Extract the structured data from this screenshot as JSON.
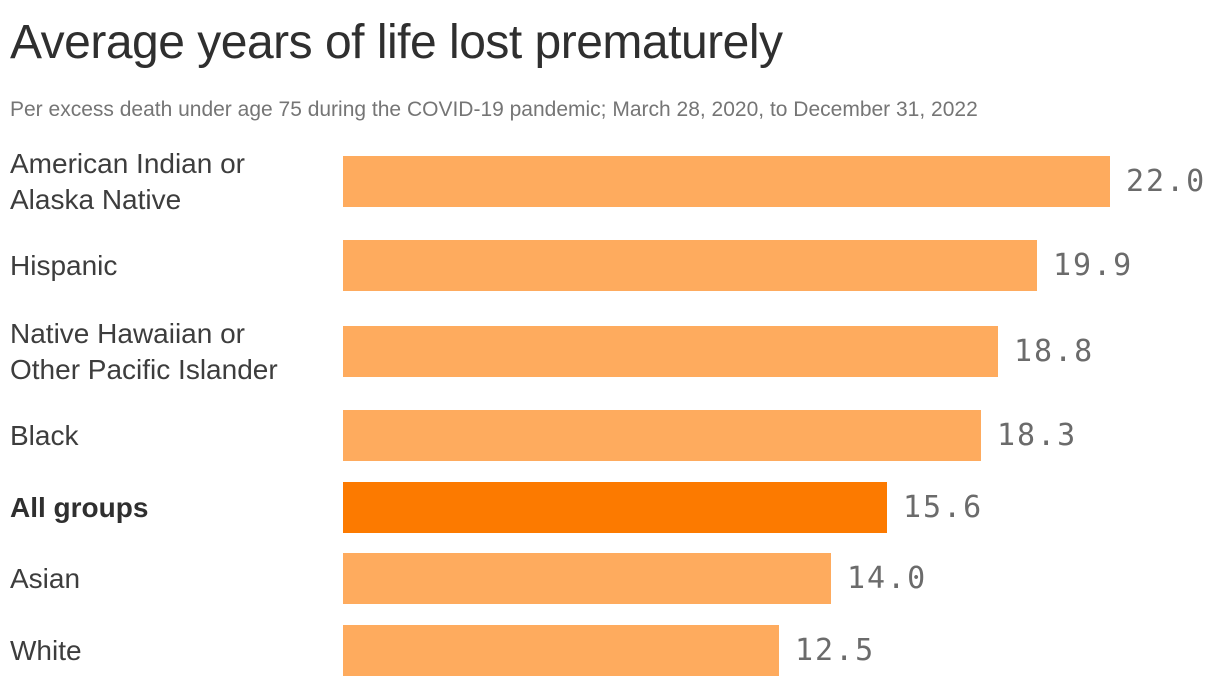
{
  "header": {
    "title": "Average years of life lost prematurely",
    "subtitle": "Per excess death under age 75 during the COVID-19 pandemic; March 28, 2020, to December 31, 2022"
  },
  "chart_data": {
    "type": "bar",
    "orientation": "horizontal",
    "title": "Average years of life lost prematurely",
    "subtitle": "Per excess death under age 75 during the COVID-19 pandemic; March 28, 2020, to December 31, 2022",
    "xlim": [
      0,
      22
    ],
    "grid": false,
    "legend": false,
    "categories": [
      "American Indian or Alaska Native",
      "Hispanic",
      "Native Hawaiian or Other Pacific Islander",
      "Black",
      "All groups",
      "Asian",
      "White"
    ],
    "values": [
      22.0,
      19.9,
      18.8,
      18.3,
      15.6,
      14.0,
      12.5
    ],
    "value_labels": [
      "22.0",
      "19.9",
      "18.8",
      "18.3",
      "15.6",
      "14.0",
      "12.5"
    ],
    "display_label_lines": [
      [
        "American Indian or",
        "Alaska Native"
      ],
      [
        "Hispanic"
      ],
      [
        "Native Hawaiian or",
        "Other Pacific Islander"
      ],
      [
        "Black"
      ],
      [
        "All groups"
      ],
      [
        "Asian"
      ],
      [
        "White"
      ]
    ],
    "highlight_index": 4,
    "colors": {
      "bar": "#feab5e",
      "highlight_bar": "#fc7a00",
      "category_label": "#3d3d3d",
      "value_label": "#6b6b6b",
      "title": "#2f2f2f",
      "subtitle": "#757575"
    }
  }
}
